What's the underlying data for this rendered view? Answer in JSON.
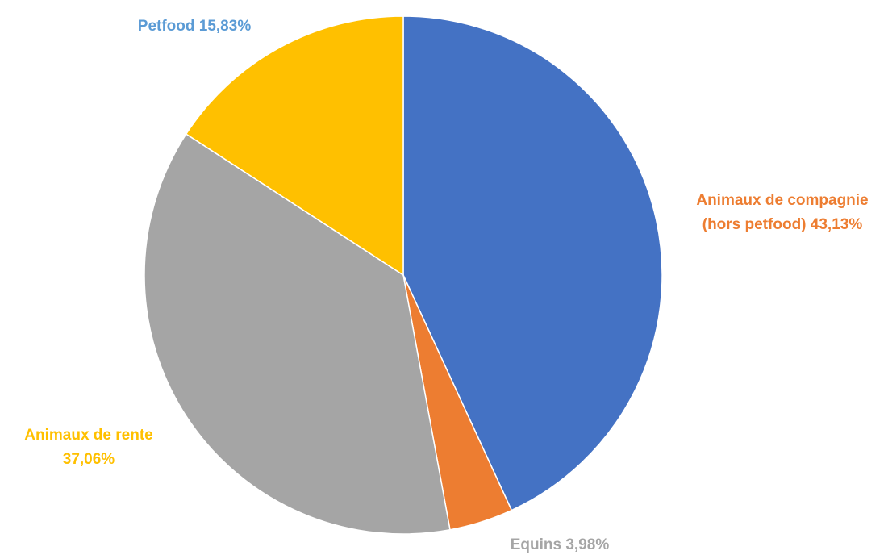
{
  "chart_data": {
    "type": "pie",
    "title": "",
    "start_angle_deg": 0,
    "direction": "clockwise",
    "slices": [
      {
        "name": "Animaux de compagnie (hors petfood)",
        "value": 43.13,
        "value_label": "43,13%",
        "label_lines": [
          "Animaux de compagnie",
          "(hors petfood) 43,13%"
        ],
        "color": "#4472C4",
        "label_color": "#ED7D31",
        "label_anchor": "middle"
      },
      {
        "name": "Equins",
        "value": 3.98,
        "value_label": "3,98%",
        "label_lines": [
          "Equins 3,98%"
        ],
        "color": "#ED7D31",
        "label_color": "#A5A5A5",
        "label_anchor": "middle"
      },
      {
        "name": "Animaux de rente",
        "value": 37.06,
        "value_label": "37,06%",
        "label_lines": [
          "Animaux de rente",
          "37,06%"
        ],
        "color": "#A5A5A5",
        "label_color": "#FFC000",
        "label_anchor": "middle"
      },
      {
        "name": "Petfood",
        "value": 15.83,
        "value_label": "15,83%",
        "label_lines": [
          "Petfood 15,83%"
        ],
        "color": "#FFC000",
        "label_color": "#5B9BD5",
        "label_anchor": "middle"
      }
    ]
  }
}
